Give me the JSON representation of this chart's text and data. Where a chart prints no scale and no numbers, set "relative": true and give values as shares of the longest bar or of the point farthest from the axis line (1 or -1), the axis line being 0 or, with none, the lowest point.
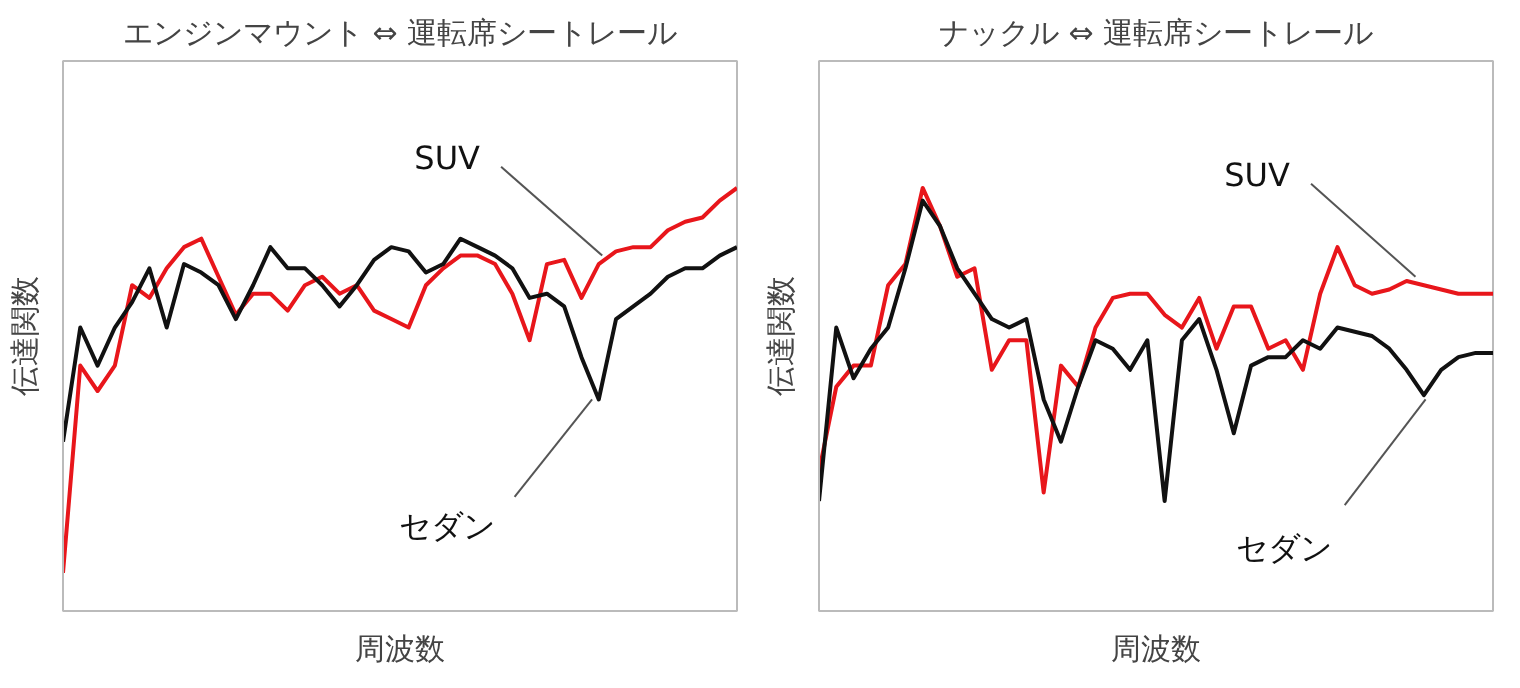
{
  "chart_data": [
    {
      "type": "line",
      "relative": true,
      "title": "エンジンマウント ⇔ 運転席シートレール",
      "xlabel": "周波数",
      "ylabel": "伝達関数",
      "categories": [
        null,
        null,
        null,
        null,
        null,
        null,
        null,
        null,
        null,
        null,
        null,
        null,
        null,
        null,
        null,
        null,
        null,
        null,
        null,
        null,
        null,
        null,
        null,
        null,
        null,
        null,
        null,
        null,
        null,
        null,
        null,
        null,
        null,
        null,
        null,
        null,
        null,
        null,
        null,
        null
      ],
      "series": [
        {
          "name": "SUV",
          "color": "#e8161b",
          "values": [
            0.09,
            0.58,
            0.52,
            0.58,
            0.77,
            0.74,
            0.81,
            0.86,
            0.88,
            0.79,
            0.7,
            0.75,
            0.75,
            0.71,
            0.77,
            0.79,
            0.75,
            0.77,
            0.71,
            0.69,
            0.67,
            0.77,
            0.81,
            0.84,
            0.84,
            0.82,
            0.75,
            0.64,
            0.82,
            0.83,
            0.74,
            0.82,
            0.85,
            0.86,
            0.86,
            0.9,
            0.92,
            0.93,
            0.97,
            1.0
          ]
        },
        {
          "name": "セダン",
          "color": "#111111",
          "values": [
            0.4,
            0.67,
            0.58,
            0.67,
            0.73,
            0.81,
            0.67,
            0.82,
            0.8,
            0.77,
            0.69,
            0.77,
            0.86,
            0.81,
            0.81,
            0.77,
            0.72,
            0.77,
            0.83,
            0.86,
            0.85,
            0.8,
            0.82,
            0.88,
            0.86,
            0.84,
            0.81,
            0.74,
            0.75,
            0.72,
            0.6,
            0.5,
            0.69,
            0.72,
            0.75,
            0.79,
            0.81,
            0.81,
            0.84,
            0.86
          ]
        }
      ]
    },
    {
      "type": "line",
      "relative": true,
      "title": "ナックル ⇔ 運転席シートレール",
      "xlabel": "周波数",
      "ylabel": "伝達関数",
      "categories": [
        null,
        null,
        null,
        null,
        null,
        null,
        null,
        null,
        null,
        null,
        null,
        null,
        null,
        null,
        null,
        null,
        null,
        null,
        null,
        null,
        null,
        null,
        null,
        null,
        null,
        null,
        null,
        null,
        null,
        null,
        null,
        null,
        null,
        null,
        null,
        null,
        null,
        null,
        null,
        null
      ],
      "series": [
        {
          "name": "SUV",
          "color": "#e8161b",
          "values": [
            0.33,
            0.53,
            0.58,
            0.58,
            0.77,
            0.82,
            1.0,
            0.91,
            0.79,
            0.81,
            0.57,
            0.64,
            0.64,
            0.28,
            0.58,
            0.53,
            0.67,
            0.74,
            0.75,
            0.75,
            0.7,
            0.67,
            0.74,
            0.62,
            0.72,
            0.72,
            0.62,
            0.64,
            0.57,
            0.75,
            0.86,
            0.77,
            0.75,
            0.76,
            0.78,
            0.77,
            0.76,
            0.75,
            0.75,
            0.75
          ]
        },
        {
          "name": "セダン",
          "color": "#111111",
          "values": [
            0.26,
            0.67,
            0.55,
            0.62,
            0.67,
            0.81,
            0.97,
            0.91,
            0.81,
            0.75,
            0.69,
            0.67,
            0.69,
            0.5,
            0.4,
            0.53,
            0.64,
            0.62,
            0.57,
            0.64,
            0.26,
            0.64,
            0.69,
            0.57,
            0.42,
            0.58,
            0.6,
            0.6,
            0.64,
            0.62,
            0.67,
            0.66,
            0.65,
            0.62,
            0.57,
            0.51,
            0.57,
            0.6,
            0.61,
            0.61
          ]
        }
      ]
    }
  ]
}
